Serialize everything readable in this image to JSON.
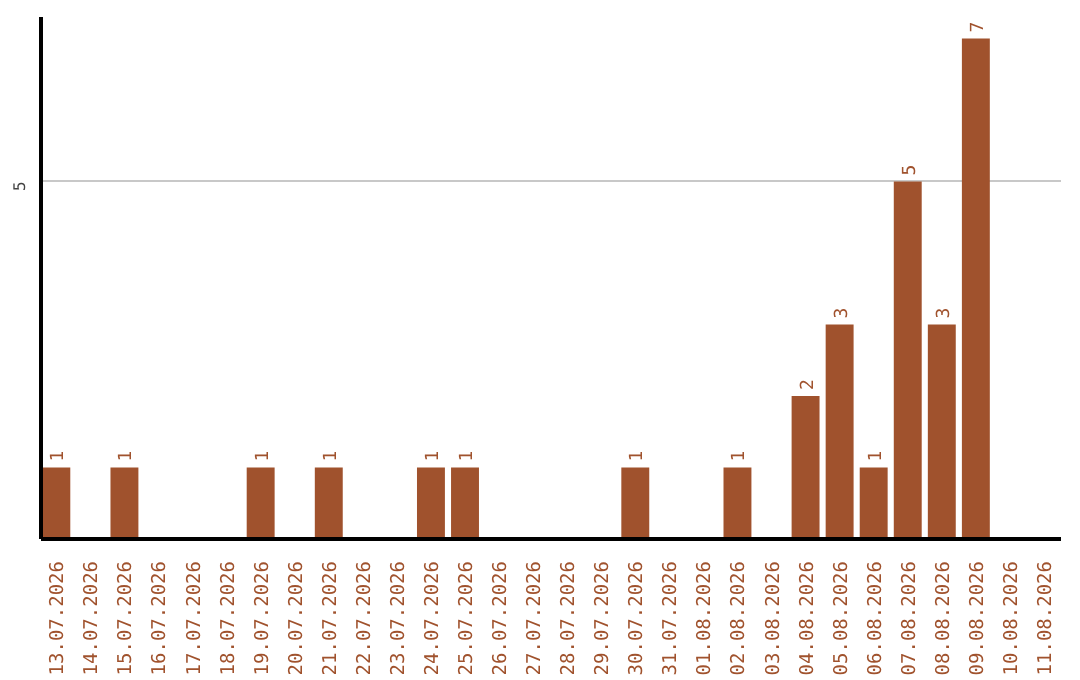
{
  "chart_data": {
    "type": "bar",
    "categories": [
      "13.07.2026",
      "14.07.2026",
      "15.07.2026",
      "16.07.2026",
      "17.07.2026",
      "18.07.2026",
      "19.07.2026",
      "20.07.2026",
      "21.07.2026",
      "22.07.2026",
      "23.07.2026",
      "24.07.2026",
      "25.07.2026",
      "26.07.2026",
      "27.07.2026",
      "28.07.2026",
      "29.07.2026",
      "30.07.2026",
      "31.07.2026",
      "01.08.2026",
      "02.08.2026",
      "03.08.2026",
      "04.08.2026",
      "05.08.2026",
      "06.08.2026",
      "07.08.2026",
      "08.08.2026",
      "09.08.2026",
      "10.08.2026",
      "11.08.2026"
    ],
    "values": [
      1,
      0,
      1,
      0,
      0,
      0,
      1,
      0,
      1,
      0,
      0,
      1,
      1,
      0,
      0,
      0,
      0,
      1,
      0,
      0,
      1,
      0,
      2,
      3,
      1,
      5,
      3,
      7,
      0,
      0
    ],
    "value_labels": [
      "1",
      null,
      "1",
      null,
      null,
      null,
      "1",
      null,
      "1",
      null,
      null,
      "1",
      "1",
      null,
      null,
      null,
      null,
      "1",
      null,
      null,
      "1",
      null,
      "2",
      "3",
      "1",
      "5",
      "3",
      "7",
      null,
      null
    ],
    "color": "#a0522d",
    "ylim": [
      0,
      7.3
    ],
    "yticks": [
      5
    ],
    "grid": "y"
  }
}
